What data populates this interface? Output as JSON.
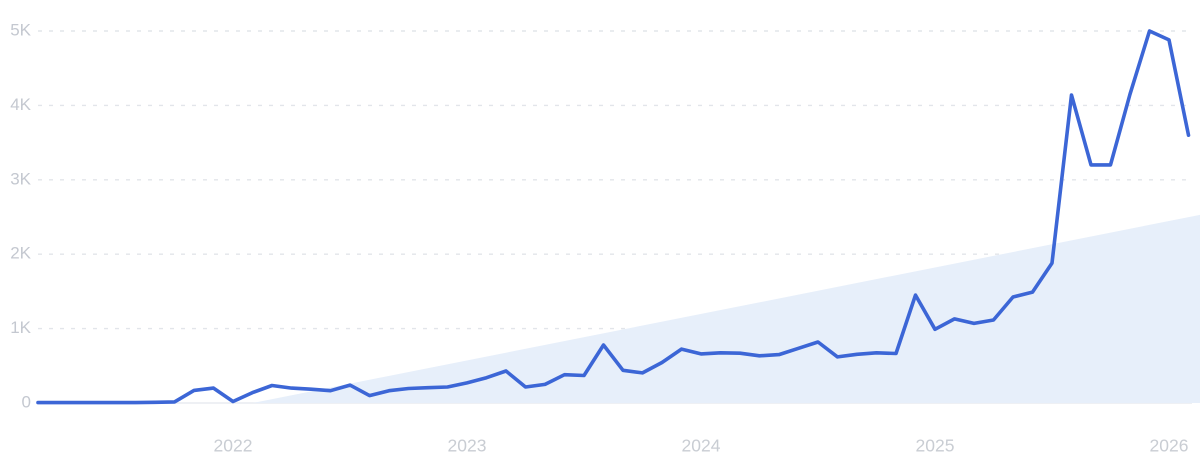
{
  "chart_data": {
    "type": "line",
    "title": "",
    "xlabel": "",
    "ylabel": "",
    "legend": "none",
    "grid": "dashed-horizontal",
    "ylim": [
      0,
      5000
    ],
    "x": [
      "2021-03",
      "2021-04",
      "2021-05",
      "2021-06",
      "2021-07",
      "2021-08",
      "2021-09",
      "2021-10",
      "2021-11",
      "2021-12",
      "2022-01",
      "2022-02",
      "2022-03",
      "2022-04",
      "2022-05",
      "2022-06",
      "2022-07",
      "2022-08",
      "2022-09",
      "2022-10",
      "2022-11",
      "2022-12",
      "2023-01",
      "2023-02",
      "2023-03",
      "2023-04",
      "2023-05",
      "2023-06",
      "2023-07",
      "2023-08",
      "2023-09",
      "2023-10",
      "2023-11",
      "2023-12",
      "2024-01",
      "2024-02",
      "2024-03",
      "2024-04",
      "2024-05",
      "2024-06",
      "2024-07",
      "2024-08",
      "2024-09",
      "2024-10",
      "2024-11",
      "2024-12",
      "2025-01",
      "2025-02",
      "2025-03",
      "2025-04",
      "2025-05",
      "2025-06",
      "2025-07",
      "2025-08",
      "2025-09",
      "2025-10",
      "2025-11",
      "2025-12",
      "2026-01",
      "2026-02"
    ],
    "series": [
      {
        "name": "monthly-volume",
        "values": [
          5,
          5,
          5,
          5,
          5,
          5,
          10,
          15,
          170,
          200,
          20,
          140,
          235,
          200,
          185,
          165,
          240,
          100,
          165,
          195,
          205,
          215,
          270,
          340,
          430,
          215,
          250,
          380,
          370,
          780,
          440,
          405,
          545,
          725,
          660,
          675,
          670,
          635,
          650,
          735,
          820,
          620,
          655,
          675,
          665,
          1450,
          990,
          1130,
          1070,
          1115,
          1425,
          1490,
          1880,
          4140,
          3200,
          3200,
          4150,
          5000,
          4880,
          3600
        ]
      }
    ],
    "y_ticks": [
      {
        "value": 0,
        "label": "0"
      },
      {
        "value": 1000,
        "label": "1K"
      },
      {
        "value": 2000,
        "label": "2K"
      },
      {
        "value": 3000,
        "label": "3K"
      },
      {
        "value": 4000,
        "label": "4K"
      },
      {
        "value": 5000,
        "label": "5K"
      }
    ],
    "x_ticks": [
      {
        "month": "2022-01",
        "label": "2022"
      },
      {
        "month": "2023-01",
        "label": "2023"
      },
      {
        "month": "2024-01",
        "label": "2024"
      },
      {
        "month": "2025-01",
        "label": "2025"
      },
      {
        "month": "2026-01",
        "label": "2026"
      }
    ],
    "trendline": {
      "type": "linear-shaded-area",
      "from": {
        "x": "2022-02",
        "y": 0
      },
      "to": {
        "x": "2026-03",
        "y": 2550
      }
    },
    "colors": {
      "line": "#3c66d6",
      "trend_fill": "#e7effa",
      "grid": "#e2e5ea",
      "zero_line": "#e9ecf0",
      "y_label": "#c4c8d0",
      "x_label": "#c9cdd3",
      "background": "#ffffff"
    }
  }
}
